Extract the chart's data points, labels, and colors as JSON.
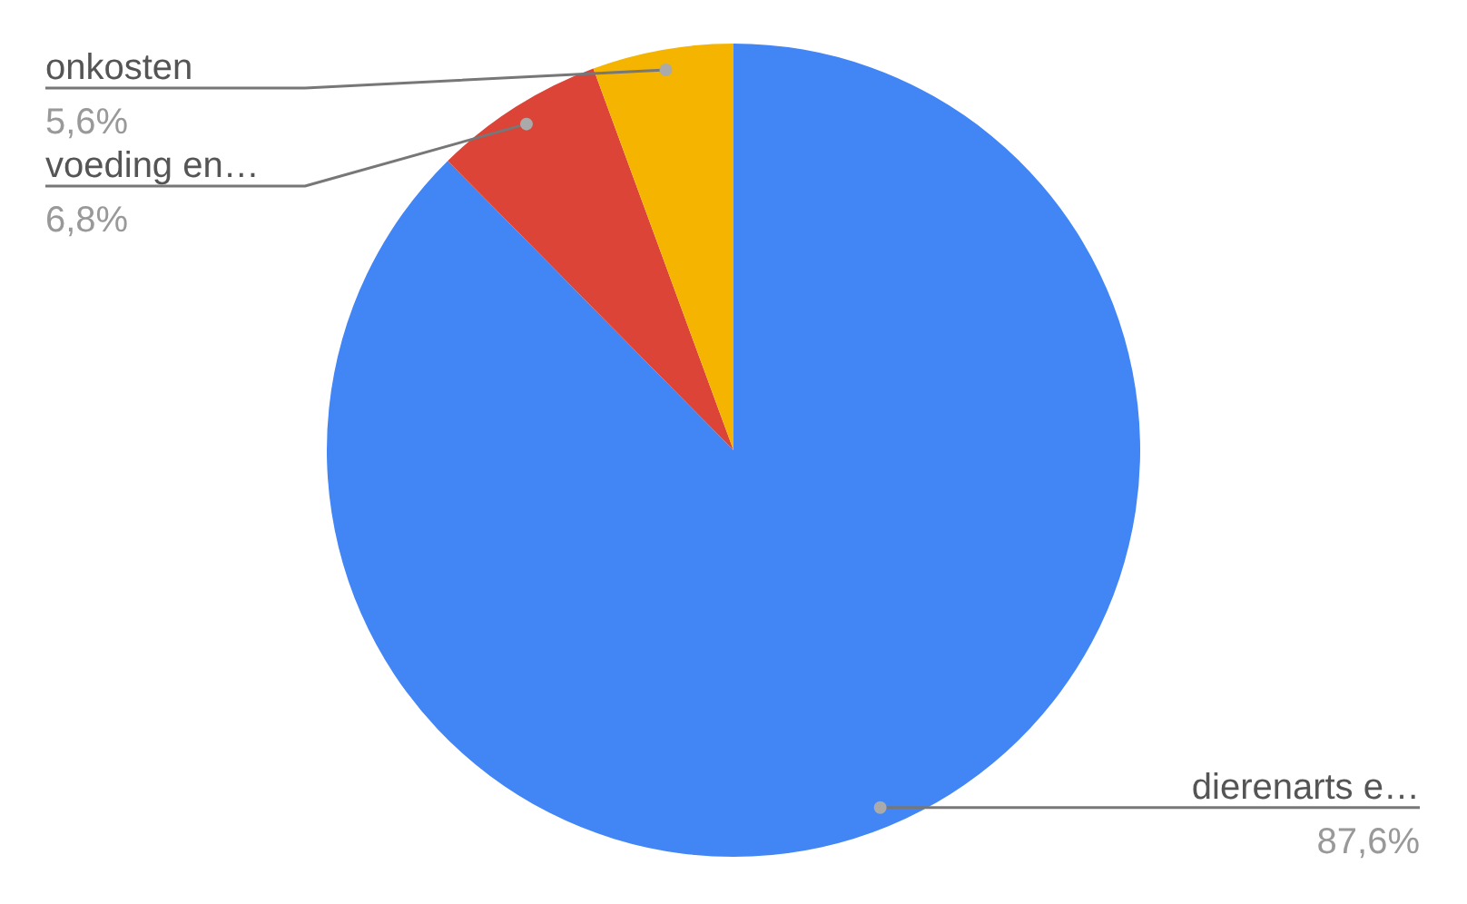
{
  "chart_data": {
    "type": "pie",
    "categories": [
      "dierenarts e…",
      "voeding en…",
      "onkosten"
    ],
    "values": [
      87.6,
      6.8,
      5.6
    ],
    "value_labels": [
      "87,6%",
      "6,8%",
      "5,6%"
    ],
    "colors": [
      "#4285f4",
      "#db4437",
      "#f4b400"
    ],
    "legend": false
  }
}
